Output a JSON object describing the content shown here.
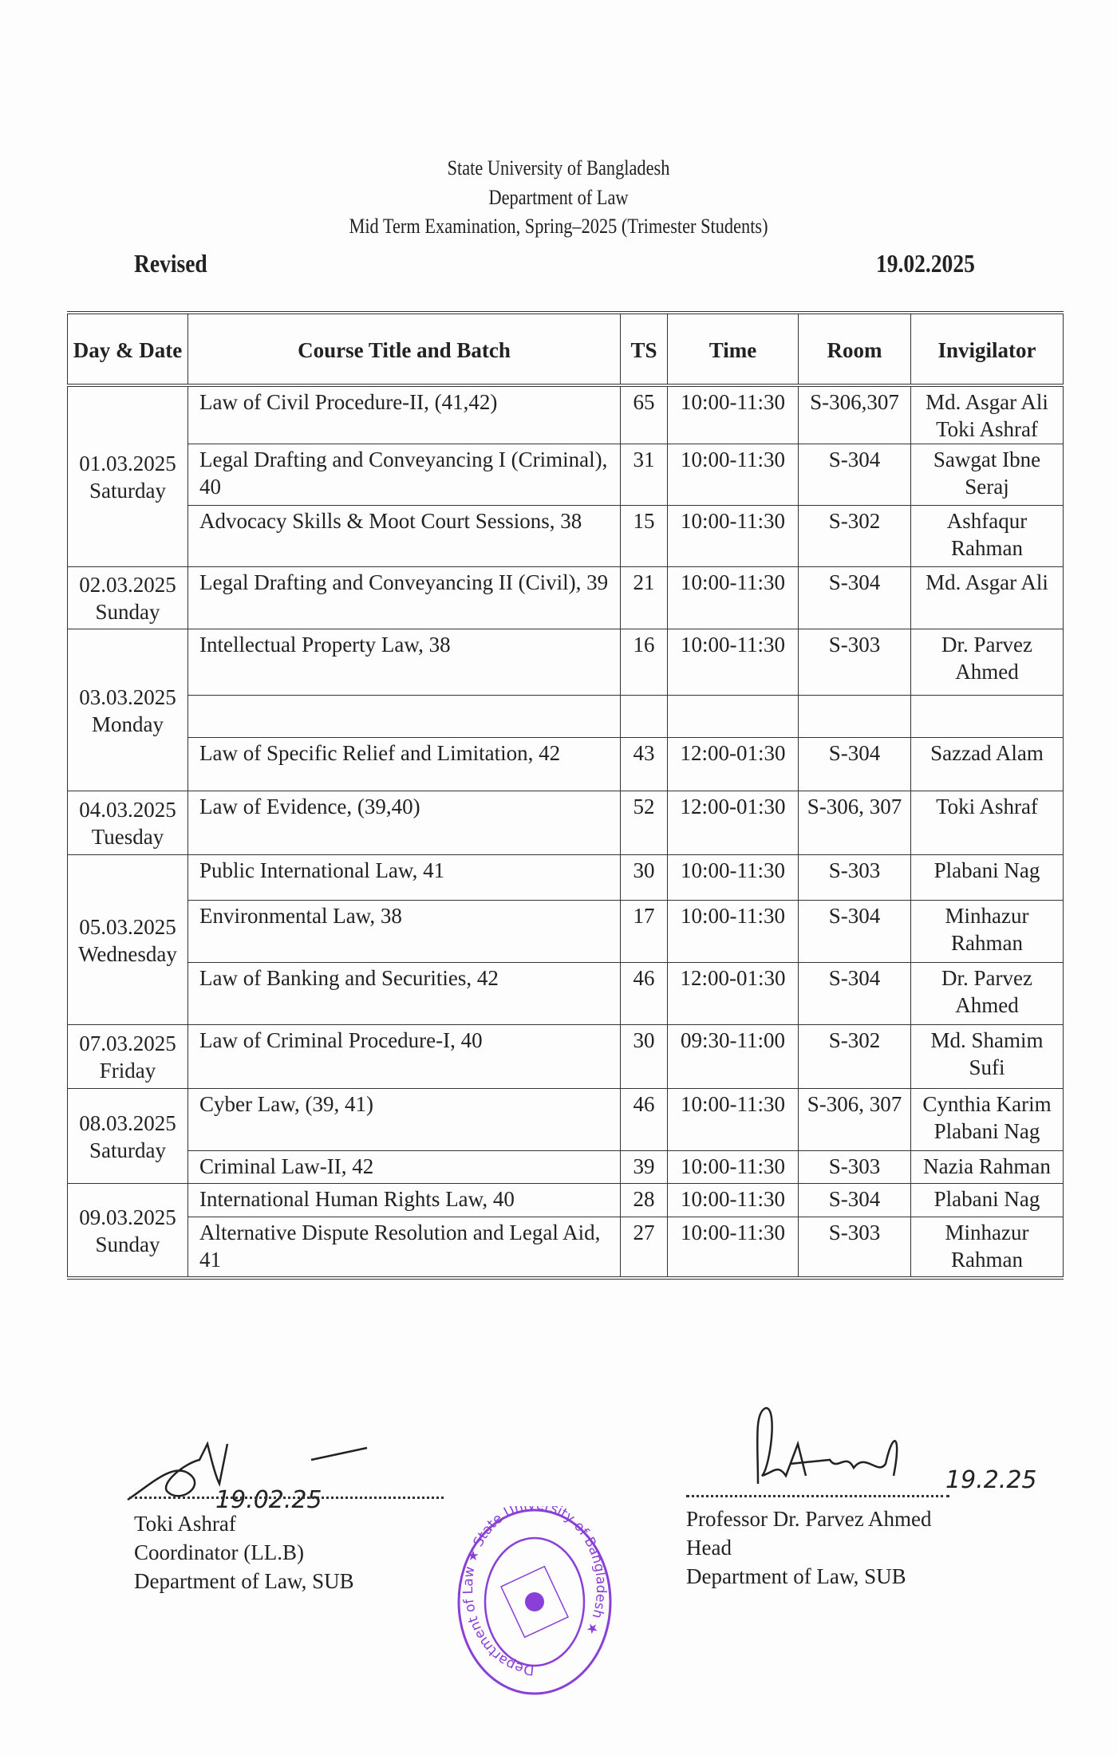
{
  "header": {
    "university": "State University of Bangladesh",
    "department": "Department of Law",
    "exam": "Mid Term Examination, Spring–2025 (Trimester Students)",
    "revised": "Revised",
    "date": "19.02.2025"
  },
  "table": {
    "columns": [
      "Day & Date",
      "Course Title and Batch",
      "TS",
      "Time",
      "Room",
      "Invigilator"
    ],
    "days": [
      {
        "date": "01.03.2025",
        "day": "Saturday",
        "rows": [
          {
            "course": "Law of Civil Procedure-II, (41,42)",
            "ts": "65",
            "time": "10:00-11:30",
            "room": "S-306,307",
            "invigilator": "Md. Asgar Ali Toki Ashraf"
          },
          {
            "course": "Legal Drafting and Conveyancing I (Criminal), 40",
            "ts": "31",
            "time": "10:00-11:30",
            "room": "S-304",
            "invigilator": "Sawgat Ibne Seraj"
          },
          {
            "course": "Advocacy Skills & Moot Court Sessions, 38",
            "ts": "15",
            "time": "10:00-11:30",
            "room": "S-302",
            "invigilator": "Ashfaqur Rahman"
          }
        ]
      },
      {
        "date": "02.03.2025",
        "day": "Sunday",
        "rows": [
          {
            "course": "Legal Drafting and Conveyancing II (Civil), 39",
            "ts": "21",
            "time": "10:00-11:30",
            "room": "S-304",
            "invigilator": "Md. Asgar Ali"
          }
        ]
      },
      {
        "date": "03.03.2025",
        "day": "Monday",
        "rows": [
          {
            "course": "Intellectual Property Law, 38",
            "ts": "16",
            "time": "10:00-11:30",
            "room": "S-303",
            "invigilator": "Dr. Parvez Ahmed"
          },
          {
            "course": "",
            "ts": "",
            "time": "",
            "room": "",
            "invigilator": ""
          },
          {
            "course": "Law of Specific Relief and Limitation, 42",
            "ts": "43",
            "time": "12:00-01:30",
            "room": "S-304",
            "invigilator": "Sazzad Alam"
          }
        ]
      },
      {
        "date": "04.03.2025",
        "day": "Tuesday",
        "rows": [
          {
            "course": "Law of Evidence, (39,40)",
            "ts": "52",
            "time": "12:00-01:30",
            "room": "S-306, 307",
            "invigilator": "Toki Ashraf"
          }
        ]
      },
      {
        "date": "05.03.2025",
        "day": "Wednesday",
        "rows": [
          {
            "course": "Public International Law, 41",
            "ts": "30",
            "time": "10:00-11:30",
            "room": "S-303",
            "invigilator": "Plabani Nag"
          },
          {
            "course": "Environmental Law, 38",
            "ts": "17",
            "time": "10:00-11:30",
            "room": "S-304",
            "invigilator": "Minhazur Rahman"
          },
          {
            "course": "Law of Banking and Securities, 42",
            "ts": "46",
            "time": "12:00-01:30",
            "room": "S-304",
            "invigilator": "Dr. Parvez Ahmed"
          }
        ]
      },
      {
        "date": "07.03.2025",
        "day": "Friday",
        "rows": [
          {
            "course": "Law of Criminal Procedure-I, 40",
            "ts": "30",
            "time": "09:30-11:00",
            "room": "S-302",
            "invigilator": "Md. Shamim Sufi"
          }
        ]
      },
      {
        "date": "08.03.2025",
        "day": "Saturday",
        "rows": [
          {
            "course": "Cyber Law, (39, 41)",
            "ts": "46",
            "time": "10:00-11:30",
            "room": "S-306, 307",
            "invigilator": "Cynthia Karim Plabani Nag"
          },
          {
            "course": "Criminal Law-II, 42",
            "ts": "39",
            "time": "10:00-11:30",
            "room": "S-303",
            "invigilator": "Nazia Rahman"
          }
        ]
      },
      {
        "date": "09.03.2025",
        "day": "Sunday",
        "rows": [
          {
            "course": "International Human Rights Law, 40",
            "ts": "28",
            "time": "10:00-11:30",
            "room": "S-304",
            "invigilator": "Plabani Nag"
          },
          {
            "course": "Alternative Dispute Resolution and Legal Aid, 41",
            "ts": "27",
            "time": "10:00-11:30",
            "room": "S-303",
            "invigilator": "Minhazur Rahman"
          }
        ]
      }
    ]
  },
  "signatories": {
    "left": {
      "name": "Toki Ashraf",
      "title": "Coordinator (LL.B)",
      "dept": "Department of Law, SUB",
      "signed_date": "19.02.25"
    },
    "right": {
      "name": "Professor Dr. Parvez Ahmed",
      "title": "Head",
      "dept": "Department of Law, SUB",
      "signed_date": "19.2.25"
    }
  },
  "stamp": {
    "text": "Department of Law ★ State University of Bangladesh ★",
    "color": "#8a3fd8"
  }
}
